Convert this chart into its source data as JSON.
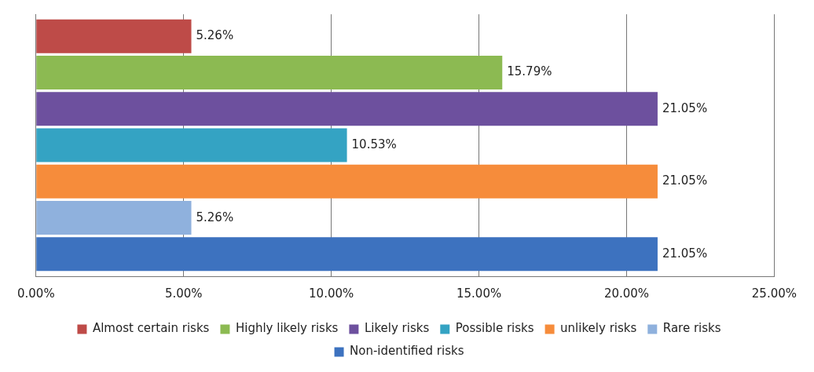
{
  "chart_data": {
    "type": "bar",
    "orientation": "horizontal",
    "categories": [
      null
    ],
    "series": [
      {
        "name": "Almost certain risks",
        "color": "#be4b48",
        "values": [
          5.26
        ],
        "value_labels": [
          "5.26%"
        ]
      },
      {
        "name": "Highly likely risks",
        "color": "#8cba52",
        "values": [
          15.79
        ],
        "value_labels": [
          "15.79%"
        ]
      },
      {
        "name": "Likely risks",
        "color": "#6d509e",
        "values": [
          21.05
        ],
        "value_labels": [
          "21.05%"
        ]
      },
      {
        "name": "Possible risks",
        "color": "#34a3c3",
        "values": [
          10.53
        ],
        "value_labels": [
          "10.53%"
        ]
      },
      {
        "name": "unlikely risks",
        "color": "#f68c3b",
        "values": [
          21.05
        ],
        "value_labels": [
          "21.05%"
        ]
      },
      {
        "name": "Rare risks",
        "color": "#8fb1dd",
        "values": [
          5.26
        ],
        "value_labels": [
          "5.26%"
        ]
      },
      {
        "name": "Non-identified risks",
        "color": "#3d72bf",
        "values": [
          21.05
        ],
        "value_labels": [
          "21.05%"
        ]
      }
    ],
    "xlim": [
      0,
      25
    ],
    "xticks": [
      {
        "value": 0,
        "label": "0.00%"
      },
      {
        "value": 5,
        "label": "5.00%"
      },
      {
        "value": 10,
        "label": "10.00%"
      },
      {
        "value": 15,
        "label": "15.00%"
      },
      {
        "value": 20,
        "label": "20.00%"
      },
      {
        "value": 25,
        "label": "25.00%"
      }
    ],
    "grid": "x",
    "legend": "bottom"
  }
}
